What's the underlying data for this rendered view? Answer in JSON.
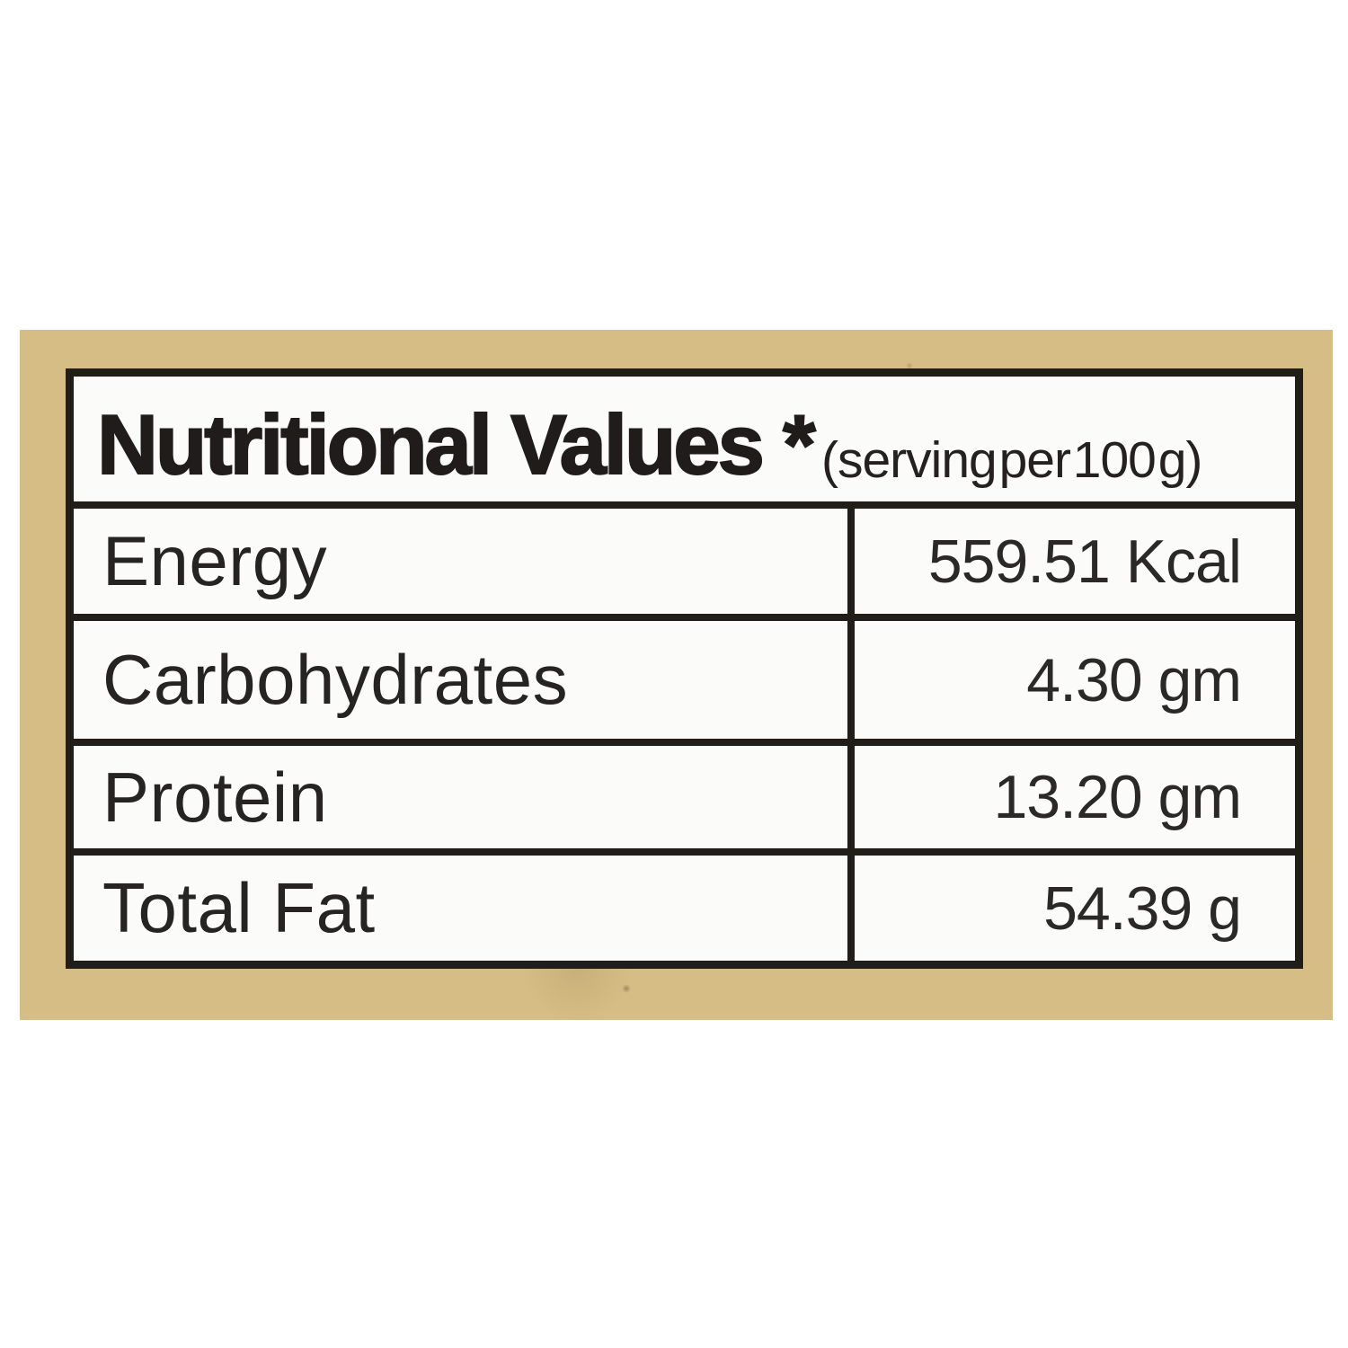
{
  "page": {
    "background": "#ffffff"
  },
  "label": {
    "frame_color": "#d6bd85",
    "border_color": "#211d19",
    "cell_background": "#fbfbfa",
    "header": {
      "title": "Nutritional Values *",
      "subtitle": "(serving per 100 g)"
    },
    "rows": [
      {
        "label": "Energy",
        "value": "559.51 Kcal"
      },
      {
        "label": "Carbohydrates",
        "value": "4.30 gm"
      },
      {
        "label": "Protein",
        "value": "13.20 gm"
      },
      {
        "label": "Total Fat",
        "value": "54.39 g"
      }
    ]
  }
}
